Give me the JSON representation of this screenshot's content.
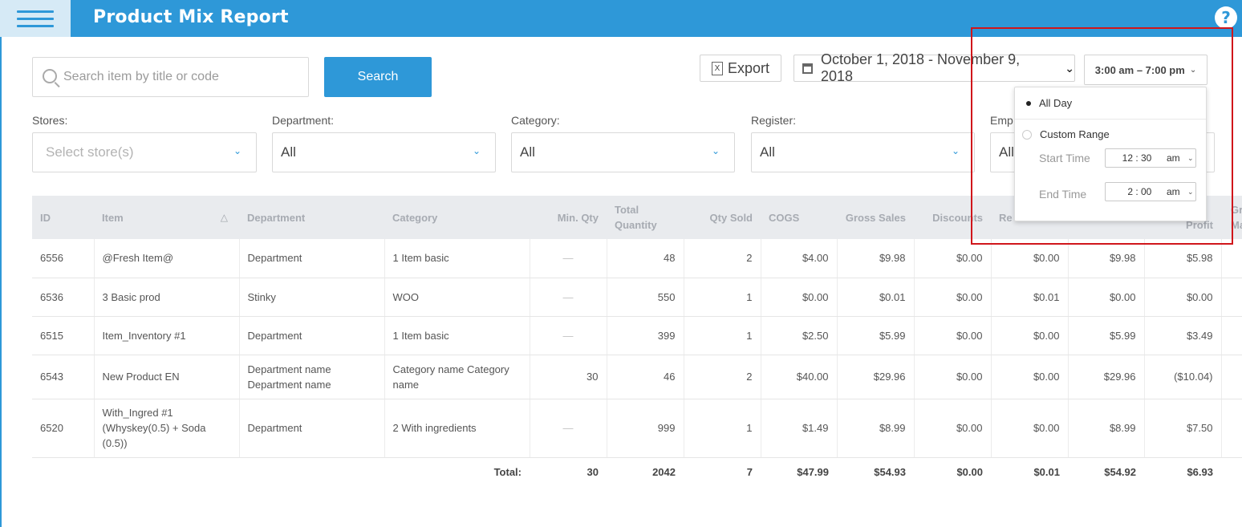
{
  "header": {
    "title": "Product Mix Report",
    "help_icon": "question-circle-icon",
    "menu_icon": "hamburger-icon"
  },
  "toolbar": {
    "search_placeholder": "Search item by title or code",
    "search_label": "Search",
    "export_label": "Export",
    "date_range": "October 1, 2018 - November 9, 2018",
    "time_range": "3:00 am – 7:00 pm"
  },
  "filters": {
    "stores": {
      "label": "Stores:",
      "placeholder": "Select store(s)"
    },
    "department": {
      "label": "Department:",
      "value": "All"
    },
    "category": {
      "label": "Category:",
      "value": "All"
    },
    "register": {
      "label": "Register:",
      "value": "All"
    },
    "employee": {
      "label": "Emp",
      "value": "All"
    }
  },
  "table": {
    "columns": [
      "ID",
      "Item",
      "Department",
      "Category",
      "Min. Qty",
      "Total Quantity",
      "Qty Sold",
      "COGS",
      "Gross Sales",
      "Discounts",
      "Re",
      "",
      "Profit",
      "Gr Ma"
    ],
    "rows": [
      {
        "id": "6556",
        "item": "@Fresh Item@",
        "department": "Department",
        "category": "1 Item basic",
        "min_qty": "—",
        "total_qty": "48",
        "qty_sold": "2",
        "cogs": "$4.00",
        "gross": "$9.98",
        "discounts": "$0.00",
        "returns": "$0.00",
        "net": "$9.98",
        "profit": "$5.98"
      },
      {
        "id": "6536",
        "item": "3 Basic prod",
        "department": "Stinky",
        "category": "WOO",
        "min_qty": "—",
        "total_qty": "550",
        "qty_sold": "1",
        "cogs": "$0.00",
        "gross": "$0.01",
        "discounts": "$0.00",
        "returns": "$0.01",
        "net": "$0.00",
        "profit": "$0.00"
      },
      {
        "id": "6515",
        "item": "Item_Inventory #1",
        "department": "Department",
        "category": "1 Item basic",
        "min_qty": "—",
        "total_qty": "399",
        "qty_sold": "1",
        "cogs": "$2.50",
        "gross": "$5.99",
        "discounts": "$0.00",
        "returns": "$0.00",
        "net": "$5.99",
        "profit": "$3.49"
      },
      {
        "id": "6543",
        "item": "New Product EN",
        "department": "Department name Department name",
        "category": "Category name Category name",
        "min_qty": "30",
        "total_qty": "46",
        "qty_sold": "2",
        "cogs": "$40.00",
        "gross": "$29.96",
        "discounts": "$0.00",
        "returns": "$0.00",
        "net": "$29.96",
        "profit": "($10.04)"
      },
      {
        "id": "6520",
        "item": "With_Ingred #1 (Whyskey(0.5) + Soda (0.5))",
        "department": "Department",
        "category": "2 With ingredients",
        "min_qty": "—",
        "total_qty": "999",
        "qty_sold": "1",
        "cogs": "$1.49",
        "gross": "$8.99",
        "discounts": "$0.00",
        "returns": "$0.00",
        "net": "$8.99",
        "profit": "$7.50"
      }
    ],
    "total": {
      "label": "Total:",
      "min_qty": "30",
      "total_qty": "2042",
      "qty_sold": "7",
      "cogs": "$47.99",
      "gross": "$54.93",
      "discounts": "$0.00",
      "returns": "$0.01",
      "net": "$54.92",
      "profit": "$6.93"
    }
  },
  "time_popup": {
    "all_day": "All Day",
    "custom_range": "Custom Range",
    "start_label": "Start Time",
    "start": {
      "hour": "12",
      "minute": "30",
      "ampm": "am"
    },
    "end_label": "End Time",
    "end": {
      "hour": "2",
      "minute": "00",
      "ampm": "am"
    }
  }
}
